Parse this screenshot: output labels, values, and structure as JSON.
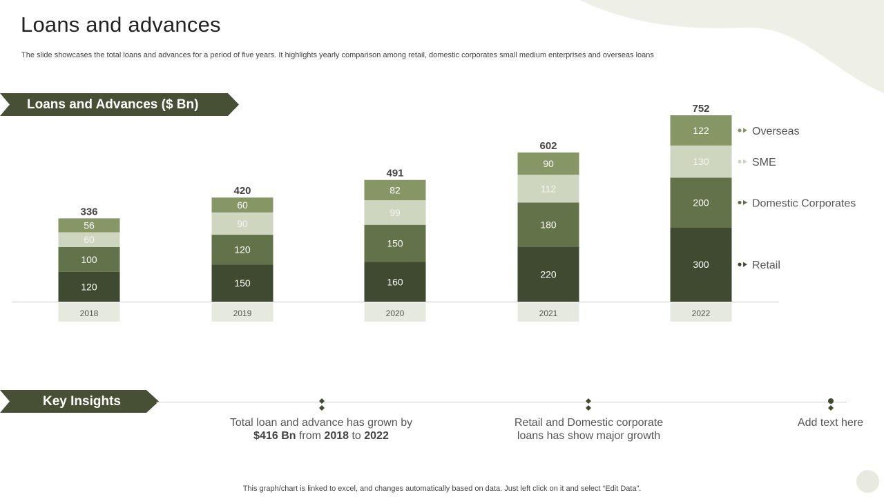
{
  "slide": {
    "title": "Loans and advances",
    "subtitle": "The slide showcases the total loans and advances for a period of five years. It highlights yearly comparison among retail, domestic corporates small medium enterprises and overseas loans",
    "footer": "This graph/chart is linked to excel,  and changes automatically based on data. Just left click on it and select “Edit Data”."
  },
  "chart_banner": {
    "label": "Loans and Advances ($ Bn)"
  },
  "insights_banner": {
    "label": "Key Insights"
  },
  "insights": [
    {
      "pre": "Total loan and advance has grown by ",
      "amount": "$416 Bn",
      "mid": " from ",
      "from_year": "2018",
      "to_word": " to ",
      "to_year": "2022"
    },
    {
      "text": "Retail and Domestic corporate loans has show major growth"
    },
    {
      "text": "Add text here"
    }
  ],
  "colors": {
    "retail": "#404a30",
    "domestic": "#637349",
    "sme": "#cfd6c0",
    "overseas": "#879665",
    "banner": "#474f34",
    "year_box": "#e6e9de",
    "total_text": "#444444"
  },
  "chart_data": {
    "type": "bar",
    "stacked": true,
    "title": "Loans and Advances ($ Bn)",
    "categories": [
      "2018",
      "2019",
      "2020",
      "2021",
      "2022"
    ],
    "series": [
      {
        "name": "Retail",
        "key": "retail",
        "values": [
          120,
          150,
          160,
          220,
          300
        ]
      },
      {
        "name": "Domestic Corporates",
        "key": "domestic",
        "values": [
          100,
          120,
          150,
          180,
          200
        ]
      },
      {
        "name": "SME",
        "key": "sme",
        "values": [
          60,
          90,
          99,
          112,
          130
        ]
      },
      {
        "name": "Overseas",
        "key": "overseas",
        "values": [
          56,
          60,
          82,
          90,
          122
        ]
      }
    ],
    "totals": [
      336,
      420,
      491,
      602,
      752
    ],
    "legend_position": "right",
    "ylim": [
      0,
      752
    ]
  }
}
